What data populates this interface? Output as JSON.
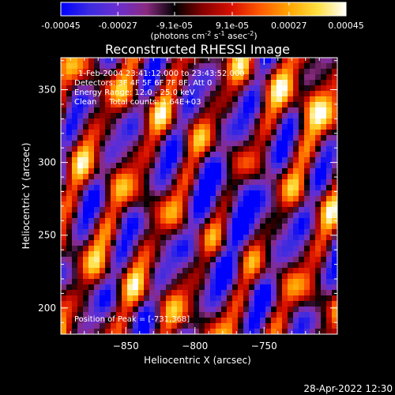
{
  "chart_data": {
    "type": "heatmap",
    "title": "Reconstructed RHESSI Image",
    "colorbar": {
      "colors": [
        "#0000ff",
        "#3b2be0",
        "#6a2fd0",
        "#8a2a80",
        "#000000",
        "#8a0000",
        "#d81000",
        "#ff5a00",
        "#ffa500",
        "#ffe040",
        "#ffffff"
      ],
      "tick_labels": [
        "-0.00045",
        "-0.00027",
        "-9.1e-05",
        "9.1e-05",
        "0.00027",
        "0.00045"
      ],
      "tick_values": [
        -0.00045,
        -0.00027,
        -9.1e-05,
        9.1e-05,
        0.00027,
        0.00045
      ],
      "range": [
        -0.00045,
        0.00045
      ],
      "unit_prefix": "(photons cm",
      "unit_exp1": "-2",
      "unit_mid": " s",
      "unit_exp2": "-1",
      "unit_suffix": " asec",
      "unit_exp3": "-2",
      "unit_close": ")"
    },
    "xlabel": "Heliocentric X (arcsec)",
    "ylabel": "Heliocentric Y (arcsec)",
    "xlim": [
      -897,
      -697
    ],
    "ylim": [
      182,
      372
    ],
    "x_ticks": [
      {
        "value": -850,
        "label": "−850"
      },
      {
        "value": -800,
        "label": "−800"
      },
      {
        "value": -750,
        "label": "−750"
      }
    ],
    "y_ticks": [
      {
        "value": 200,
        "label": "200"
      },
      {
        "value": 250,
        "label": "250"
      },
      {
        "value": 300,
        "label": "300"
      },
      {
        "value": 350,
        "label": "350"
      }
    ],
    "annotations": [
      "1-Feb-2004 23:41:12.000 to 23:43:52.000",
      "Detectors: 3F 4F 5F 6F 7F 8F, Att 0",
      "Energy Range: 12.0 - 25.0 keV",
      "Clean     Total counts: 1.64E+03"
    ],
    "peak_label": "Position of Peak = [-731,368]",
    "peak": [
      -731,
      368
    ]
  },
  "footer": {
    "timestamp": "28-Apr-2022 12:30"
  }
}
